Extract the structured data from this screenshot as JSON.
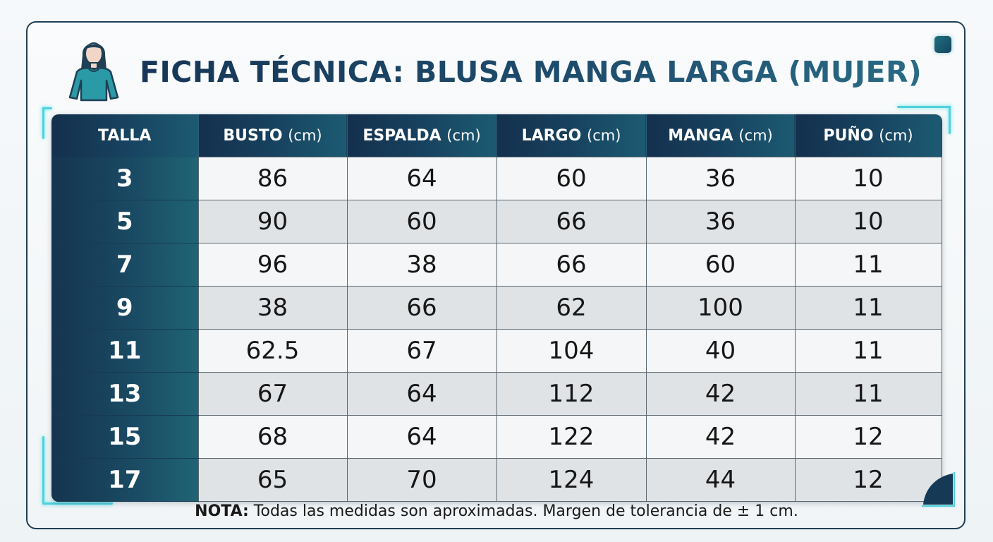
{
  "title": "FICHA TÉCNICA: BLUSA MANGA LARGA (MUJER)",
  "icons": {
    "title_icon": "woman-blouse-icon",
    "corner_top_right": "square-accent-icon",
    "corner_bottom_right": "corner-accent-icon"
  },
  "colors": {
    "header_dark": "#14304d",
    "header_teal": "#1c5a72",
    "accent_glow": "#4fd1dc",
    "row_light": "#f4f6f7",
    "row_dark": "#e0e3e6"
  },
  "table": {
    "headers": [
      {
        "label": "TALLA",
        "unit": ""
      },
      {
        "label": "BUSTO",
        "unit": "(cm)"
      },
      {
        "label": "ESPALDA",
        "unit": "(cm)"
      },
      {
        "label": "LARGO",
        "unit": "(cm)"
      },
      {
        "label": "MANGA",
        "unit": "(cm)"
      },
      {
        "label": "PUÑO",
        "unit": "(cm)"
      }
    ],
    "rows": [
      [
        "3",
        "86",
        "64",
        "60",
        "36",
        "10"
      ],
      [
        "5",
        "90",
        "60",
        "66",
        "36",
        "10"
      ],
      [
        "7",
        "96",
        "38",
        "66",
        "60",
        "11"
      ],
      [
        "9",
        "38",
        "66",
        "62",
        "100",
        "11"
      ],
      [
        "11",
        "62.5",
        "67",
        "104",
        "40",
        "11"
      ],
      [
        "13",
        "67",
        "64",
        "112",
        "42",
        "11"
      ],
      [
        "15",
        "68",
        "64",
        "122",
        "42",
        "12"
      ],
      [
        "17",
        "65",
        "70",
        "124",
        "44",
        "12"
      ]
    ]
  },
  "note": {
    "label": "NOTA:",
    "text": " Todas las medidas son aproximadas. Margen de tolerancia de ± 1 cm."
  }
}
